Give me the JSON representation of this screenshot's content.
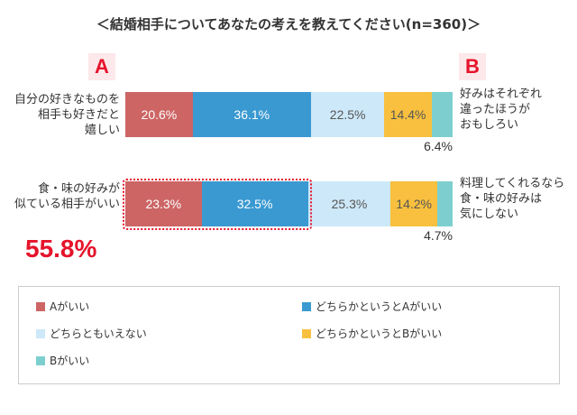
{
  "chart_data": {
    "type": "stacked-bar-horizontal",
    "title": "＜結婚相手についてあなたの考えを教えてください(n=360)＞",
    "side_a": "A",
    "side_b": "B",
    "categories": [
      "自分の好きなものを\n相手も好きだと\n嬉しい",
      "食・味の好みが\n似ている相手がいい"
    ],
    "right_labels": [
      "好みはそれぞれ\n違ったほうが\nおもしろい",
      "料理してくれるなら\n食・味の好みは\n気にしない"
    ],
    "xlim": [
      0,
      100
    ],
    "series": [
      {
        "name": "Aがいい",
        "color": "#cd6565",
        "values": [
          20.6,
          23.3
        ],
        "value_labels": [
          "20.6%",
          "23.3%"
        ]
      },
      {
        "name": "どちらかというとAがいい",
        "color": "#3a99d1",
        "values": [
          36.1,
          32.5
        ],
        "value_labels": [
          "36.1%",
          "32.5%"
        ]
      },
      {
        "name": "どちらともいえない",
        "color": "#cde8f8",
        "values": [
          22.5,
          25.3
        ],
        "value_labels": [
          "22.5%",
          "25.3%"
        ]
      },
      {
        "name": "どちらかというとBがいい",
        "color": "#f8c03e",
        "values": [
          14.4,
          14.2
        ],
        "value_labels": [
          "14.4%",
          "14.2%"
        ]
      },
      {
        "name": "Bがいい",
        "color": "#7dcfcf",
        "values": [
          6.4,
          4.7
        ],
        "value_labels": [
          "6.4%",
          "4.7%"
        ]
      }
    ],
    "annotation": "55.8%"
  }
}
